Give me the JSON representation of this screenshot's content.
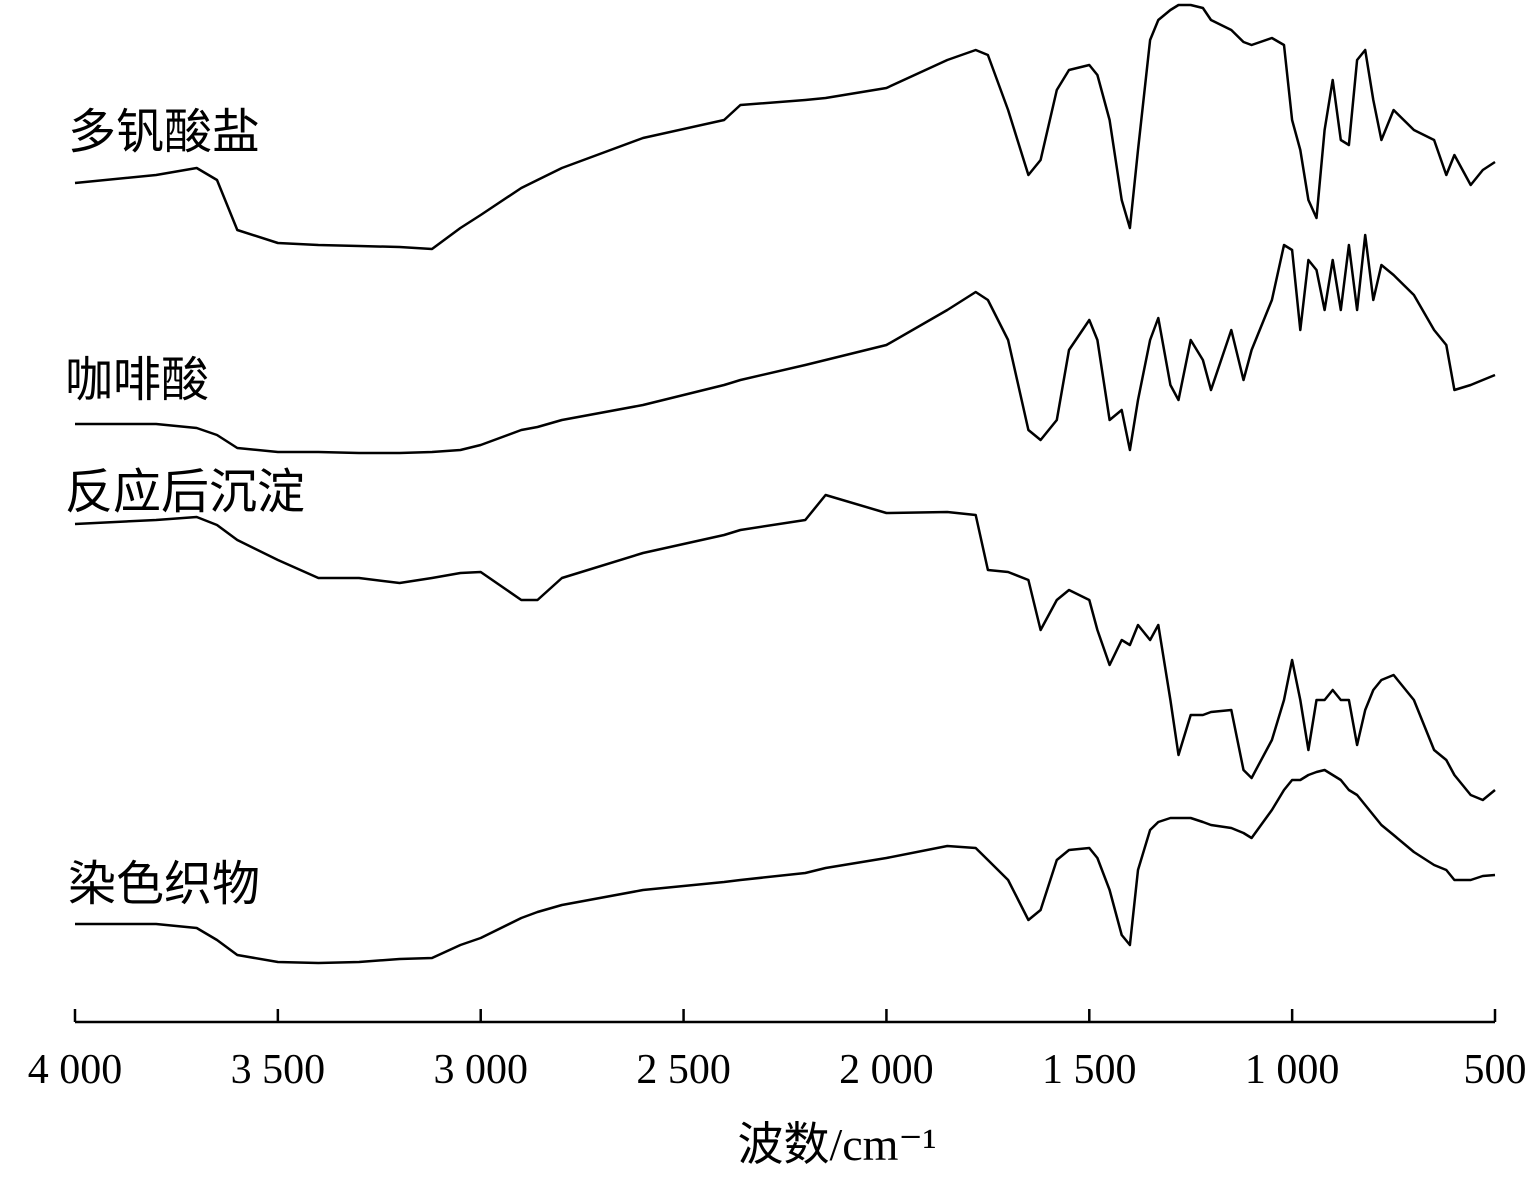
{
  "chart_data": {
    "type": "line",
    "xlabel": "波数/cm⁻¹",
    "xlim": [
      4000,
      500
    ],
    "xticks": [
      {
        "value": 4000,
        "label": "4 000"
      },
      {
        "value": 3500,
        "label": "3 500"
      },
      {
        "value": 3000,
        "label": "3 000"
      },
      {
        "value": 2500,
        "label": "2 500"
      },
      {
        "value": 2000,
        "label": "2 000"
      },
      {
        "value": 1500,
        "label": "1 500"
      },
      {
        "value": 1000,
        "label": "1 000"
      },
      500
    ],
    "ylim": [
      -22,
      1000
    ],
    "x": [
      4000,
      3800,
      3700,
      3650,
      3600,
      3500,
      3400,
      3300,
      3200,
      3120,
      3050,
      3000,
      2900,
      2860,
      2800,
      2600,
      2400,
      2360,
      2200,
      2150,
      2000,
      1850,
      1780,
      1750,
      1700,
      1650,
      1620,
      1580,
      1550,
      1500,
      1480,
      1450,
      1420,
      1400,
      1380,
      1350,
      1330,
      1300,
      1280,
      1250,
      1220,
      1200,
      1150,
      1120,
      1100,
      1050,
      1020,
      1000,
      980,
      960,
      940,
      920,
      900,
      880,
      860,
      840,
      820,
      800,
      780,
      750,
      700,
      650,
      620,
      600,
      560,
      530,
      500
    ],
    "series": [
      {
        "name": "多钒酸盐",
        "color": "#000000",
        "values": [
          817,
          825,
          832,
          820,
          770,
          757,
          755,
          754,
          753,
          751,
          772,
          785,
          812,
          820,
          832,
          862,
          880,
          895,
          900,
          902,
          912,
          940,
          950,
          945,
          890,
          825,
          840,
          910,
          930,
          935,
          925,
          880,
          800,
          772,
          850,
          960,
          980,
          990,
          995,
          995,
          992,
          980,
          970,
          958,
          955,
          962,
          955,
          880,
          850,
          800,
          782,
          870,
          920,
          860,
          855,
          940,
          950,
          900,
          860,
          890,
          870,
          860,
          825,
          845,
          815,
          830,
          838
        ]
      },
      {
        "name": "咖啡酸",
        "color": "#000000",
        "values": [
          576,
          576,
          572,
          565,
          552,
          548,
          548,
          547,
          547,
          548,
          550,
          555,
          570,
          573,
          580,
          595,
          615,
          620,
          635,
          640,
          655,
          690,
          708,
          700,
          660,
          570,
          560,
          580,
          650,
          680,
          660,
          580,
          590,
          550,
          600,
          660,
          682,
          615,
          600,
          660,
          640,
          610,
          670,
          620,
          650,
          700,
          755,
          750,
          670,
          740,
          730,
          690,
          740,
          690,
          755,
          690,
          765,
          700,
          735,
          725,
          705,
          670,
          655,
          610,
          615,
          620,
          625
        ]
      },
      {
        "name": "反应后沉淀",
        "color": "#000000",
        "values": [
          476,
          480,
          483,
          475,
          460,
          440,
          422,
          422,
          417,
          422,
          427,
          428,
          400,
          400,
          422,
          447,
          465,
          470,
          480,
          505,
          487,
          488,
          485,
          430,
          428,
          420,
          370,
          400,
          410,
          400,
          370,
          335,
          360,
          355,
          375,
          360,
          375,
          300,
          245,
          285,
          285,
          288,
          290,
          230,
          222,
          260,
          300,
          340,
          300,
          250,
          300,
          300,
          310,
          300,
          300,
          255,
          290,
          310,
          320,
          325,
          300,
          250,
          240,
          225,
          205,
          200,
          210
        ]
      },
      {
        "name": "染色织物",
        "color": "#000000",
        "values": [
          76,
          76,
          72,
          60,
          45,
          38,
          37,
          38,
          41,
          42,
          55,
          62,
          82,
          88,
          95,
          110,
          118,
          120,
          127,
          132,
          142,
          154,
          152,
          140,
          120,
          80,
          90,
          140,
          150,
          152,
          142,
          110,
          65,
          55,
          130,
          170,
          178,
          182,
          182,
          182,
          178,
          175,
          172,
          167,
          162,
          190,
          210,
          220,
          220,
          225,
          228,
          230,
          225,
          220,
          210,
          205,
          195,
          185,
          175,
          165,
          148,
          135,
          130,
          120,
          120,
          124,
          125
        ]
      }
    ]
  }
}
